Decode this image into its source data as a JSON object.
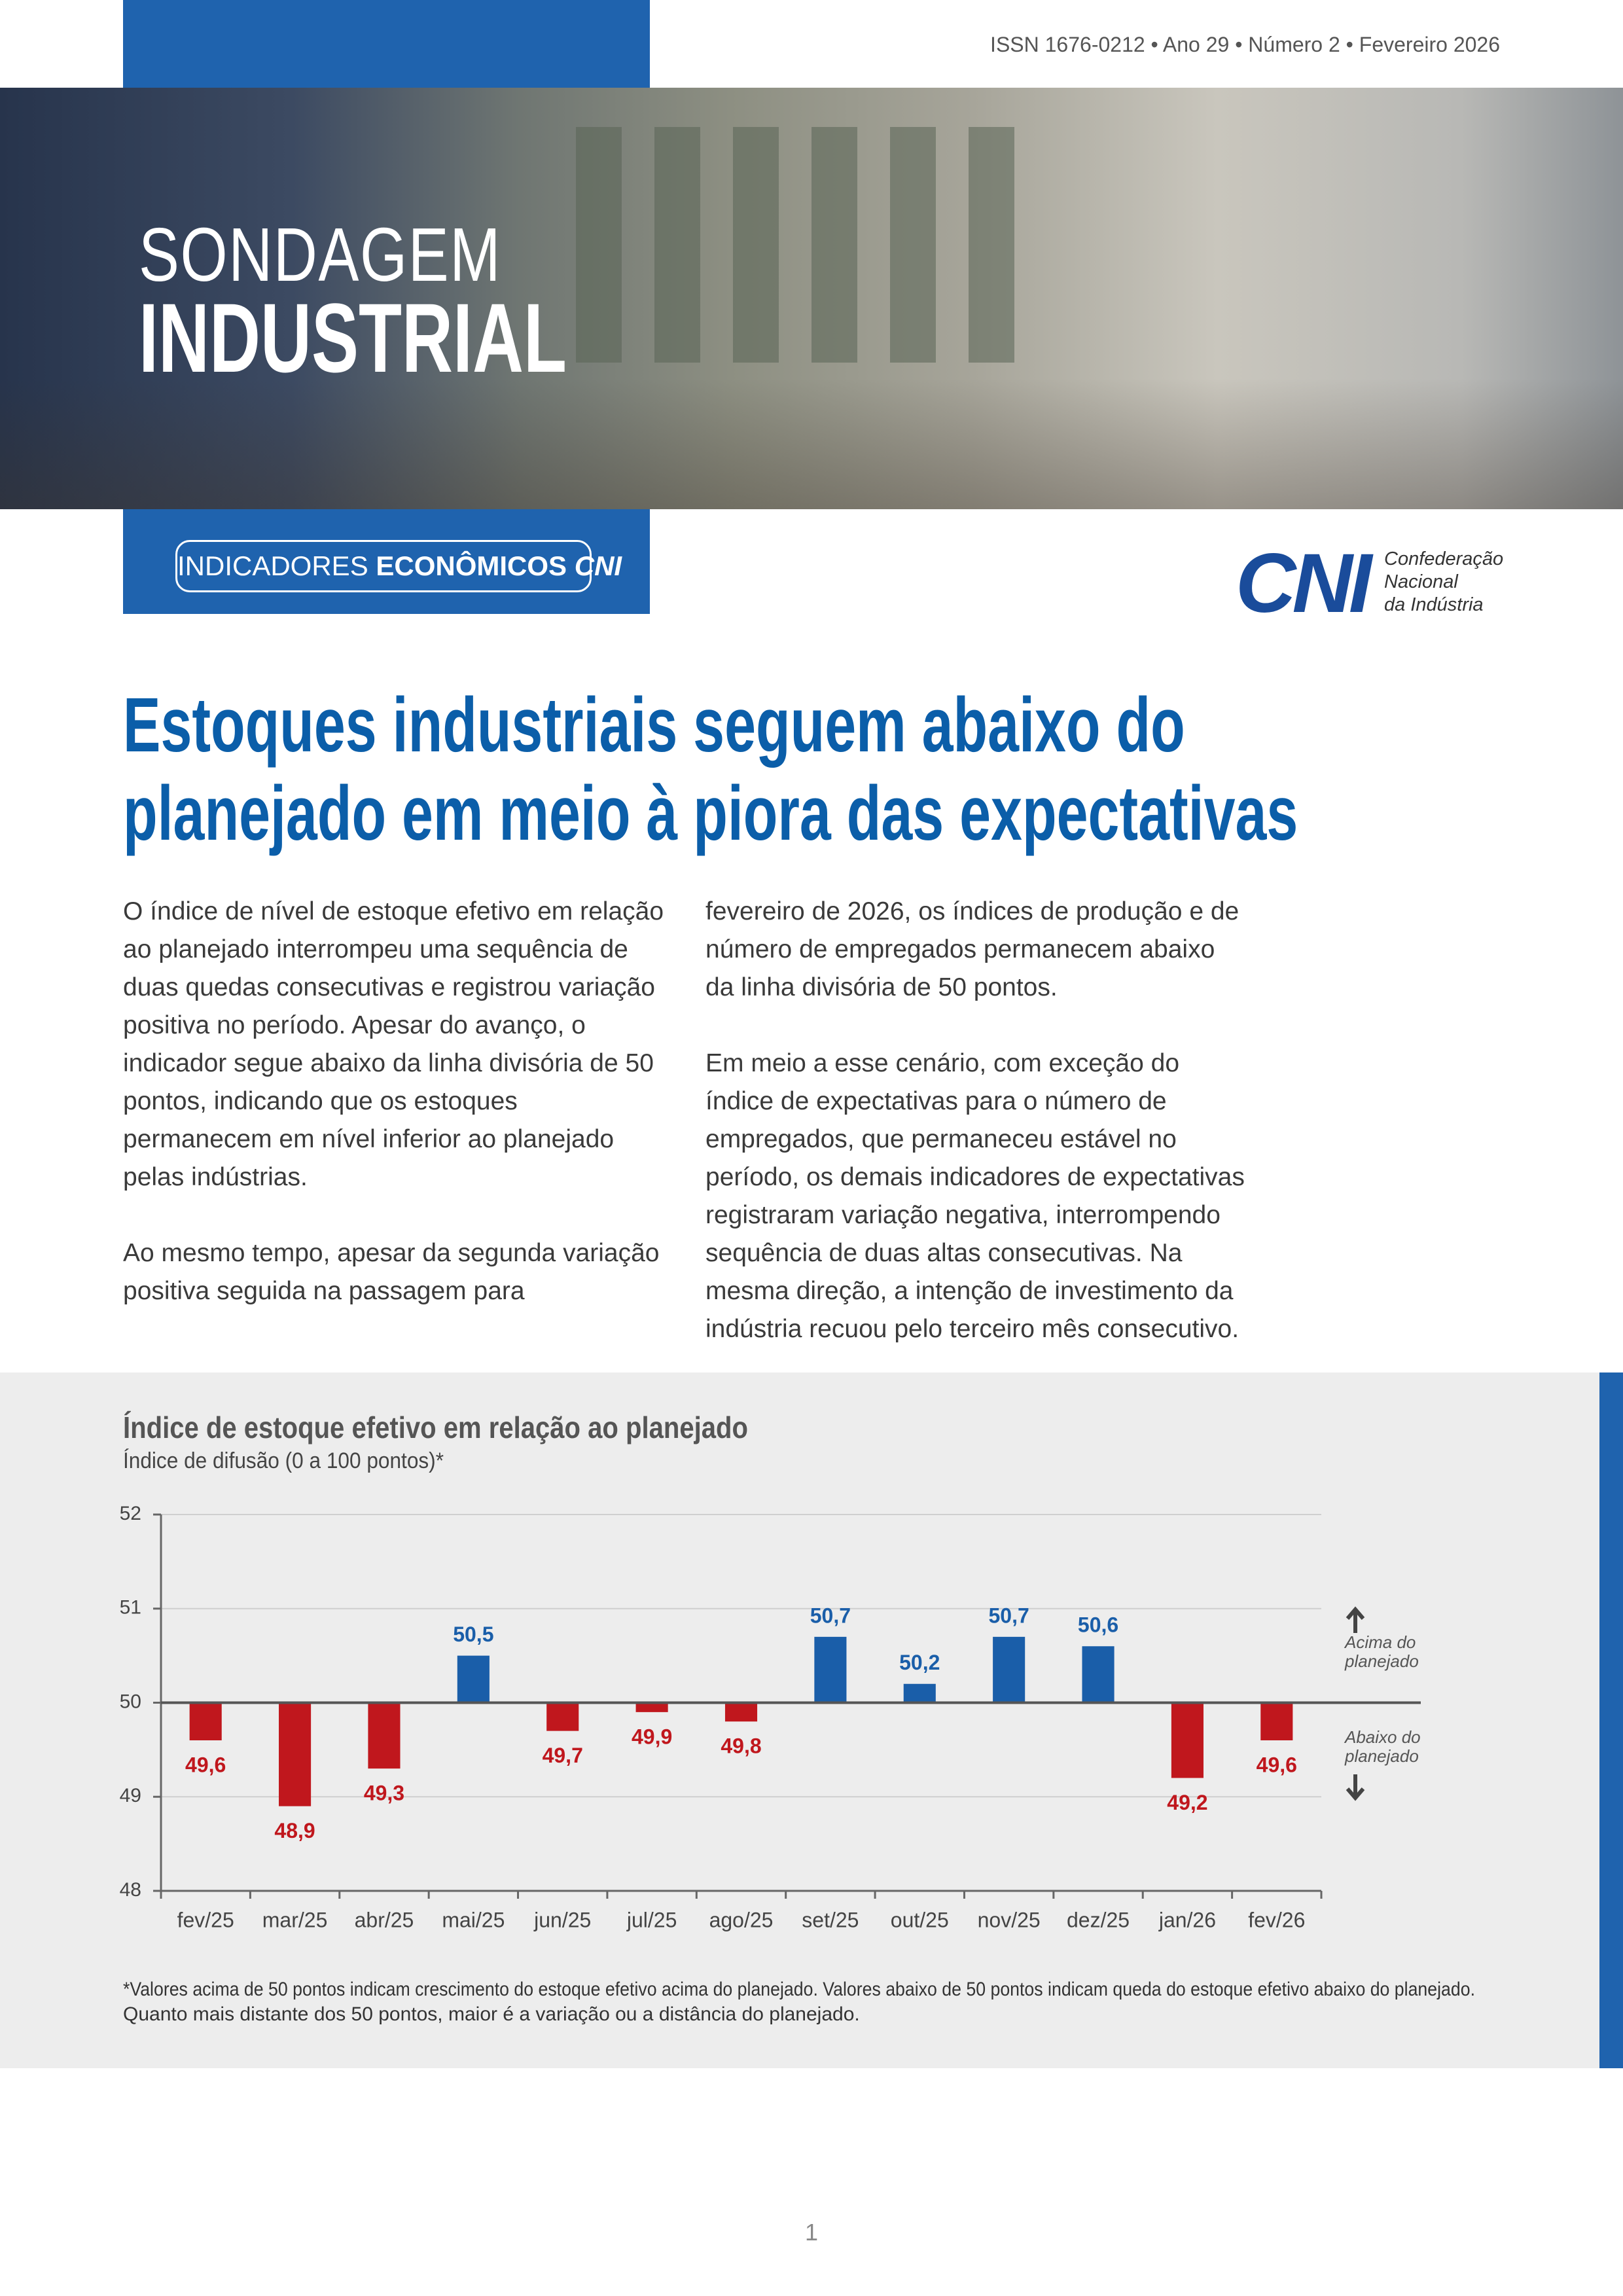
{
  "header": {
    "issn": "ISSN 1676-0212 • Ano 29 • Número 2 • Fevereiro 2026",
    "series_title_top": "SONDAGEM",
    "series_title_bottom": "INDUSTRIAL",
    "badge": {
      "light": "INDICADORES",
      "bold": "ECONÔMICOS",
      "brand": "CNI"
    },
    "logo": {
      "mark": "CNI",
      "lines": [
        "Confederação",
        "Nacional",
        "da Indústria"
      ]
    }
  },
  "article": {
    "title_lines": [
      "Estoques industriais seguem abaixo do",
      "planejado em meio à piora das expectativas"
    ],
    "columns": [
      [
        "O índice de nível de estoque efetivo em relação ao planejado interrompeu uma sequência de duas quedas consecutivas e registrou variação positiva no período. Apesar do avanço, o indicador segue abaixo da linha divisória de 50 pontos, indicando que os estoques permanecem em nível inferior ao planejado pelas indústrias.",
        "Ao mesmo tempo, apesar da segunda variação positiva seguida na passagem para"
      ],
      [
        "fevereiro de 2026, os índices de produção e de número de empregados permanecem abaixo da linha divisória de 50 pontos.",
        "Em meio a esse cenário, com exceção do índice de expectativas para o número de empregados, que permaneceu estável no período, os demais indicadores de expectativas registraram variação negativa, interrompendo sequência de duas altas consecutivas. Na mesma direção, a intenção de investimento da indústria recuou pelo terceiro mês consecutivo."
      ]
    ]
  },
  "chart_data": {
    "type": "bar",
    "title": "Índice de estoque efetivo em relação ao planejado",
    "subtitle": "Índice de difusão (0 a 100 pontos)*",
    "categories": [
      "fev/25",
      "mar/25",
      "abr/25",
      "mai/25",
      "jun/25",
      "jul/25",
      "ago/25",
      "set/25",
      "out/25",
      "nov/25",
      "dez/25",
      "jan/26",
      "fev/26"
    ],
    "values": [
      49.6,
      48.9,
      49.3,
      50.5,
      49.7,
      49.9,
      49.8,
      50.7,
      50.2,
      50.7,
      50.6,
      49.2,
      49.6
    ],
    "value_labels": [
      "49,6",
      "48,9",
      "49,3",
      "50,5",
      "49,7",
      "49,9",
      "49,8",
      "50,7",
      "50,2",
      "50,7",
      "50,6",
      "49,2",
      "49,6"
    ],
    "ylim": [
      48,
      52
    ],
    "yticks": [
      48,
      49,
      50,
      51,
      52
    ],
    "baseline": 50,
    "grid": true,
    "color_above": "#1a5ea9",
    "color_below": "#c0171d",
    "annotations": {
      "above": [
        "Acima do",
        "planejado"
      ],
      "below": [
        "Abaixo do",
        "planejado"
      ]
    }
  },
  "footnote_lines": [
    "*Valores acima de 50 pontos indicam crescimento do estoque efetivo acima do planejado. Valores abaixo de 50 pontos indicam queda do estoque efetivo abaixo do planejado.",
    "Quanto mais distante dos 50 pontos, maior é a variação ou a distância do planejado."
  ],
  "page_number": "1"
}
